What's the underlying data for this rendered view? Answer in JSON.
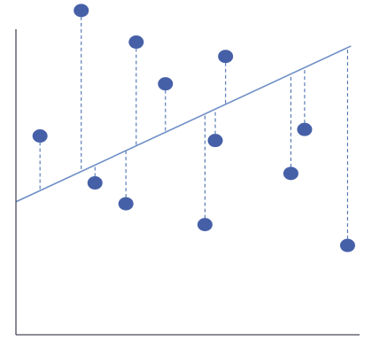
{
  "chart_data": {
    "type": "scatter",
    "title": "",
    "xlabel": "",
    "ylabel": "",
    "grid": false,
    "legend": "none",
    "xlim": [
      0,
      100
    ],
    "ylim": [
      0,
      100
    ],
    "points": [
      {
        "x": 7.0,
        "y": 61.0
      },
      {
        "x": 19.0,
        "y": 99.5
      },
      {
        "x": 23.0,
        "y": 46.6
      },
      {
        "x": 32.0,
        "y": 40.2
      },
      {
        "x": 35.0,
        "y": 89.8
      },
      {
        "x": 43.5,
        "y": 77.0
      },
      {
        "x": 55.0,
        "y": 33.8
      },
      {
        "x": 58.0,
        "y": 59.6
      },
      {
        "x": 61.0,
        "y": 85.4
      },
      {
        "x": 80.0,
        "y": 49.5
      },
      {
        "x": 84.0,
        "y": 63.0
      },
      {
        "x": 96.5,
        "y": 27.4
      }
    ],
    "regression_line": {
      "x": [
        0,
        97.5
      ],
      "y": [
        40.8,
        88.6
      ]
    },
    "residual_lines": true,
    "colors": {
      "points": "#4660a8",
      "regression_line": "#6f8fc6",
      "residuals": "#4c72b0",
      "axes": "#4a4a5a"
    }
  }
}
